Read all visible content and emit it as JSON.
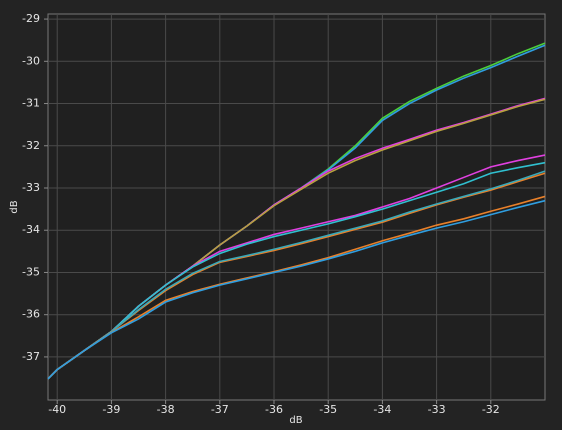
{
  "chart_data": {
    "type": "line",
    "x_label": "dB",
    "y_label": "dB",
    "x": [
      -40.17,
      -40,
      -39.5,
      -39,
      -38.5,
      -38,
      -37.5,
      -37,
      -36.5,
      -36,
      -35.5,
      -35,
      -34.5,
      -34,
      -33.5,
      -33,
      -32.5,
      -32,
      -31.5,
      -31
    ],
    "xlim": [
      -40.17,
      -31.0
    ],
    "ylim": [
      -38.02,
      -28.88
    ],
    "xticks": [
      -40,
      -39,
      -38,
      -37,
      -36,
      -35,
      -34,
      -33,
      -32
    ],
    "yticks": [
      -37,
      -36,
      -35,
      -34,
      -33,
      -32,
      -31,
      -30,
      -29
    ],
    "grid": true,
    "series": [
      {
        "color": "#4ccf3c",
        "values": [
          -37.52,
          -37.3,
          -36.85,
          -36.4,
          -35.8,
          -35.3,
          -34.85,
          -34.35,
          -33.9,
          -33.4,
          -33.0,
          -32.55,
          -32.0,
          -31.35,
          -30.95,
          -30.64,
          -30.35,
          -30.1,
          -29.82,
          -29.57
        ]
      },
      {
        "color": "#2f9ee0",
        "values": [
          -37.52,
          -37.3,
          -36.85,
          -36.4,
          -35.8,
          -35.3,
          -34.85,
          -34.35,
          -33.9,
          -33.4,
          -33.0,
          -32.57,
          -32.05,
          -31.4,
          -31.0,
          -30.68,
          -30.4,
          -30.15,
          -29.88,
          -29.62
        ]
      },
      {
        "color": "#e040e0",
        "values": [
          -37.52,
          -37.3,
          -36.85,
          -36.4,
          -35.8,
          -35.3,
          -34.85,
          -34.35,
          -33.9,
          -33.4,
          -33.0,
          -32.6,
          -32.3,
          -32.06,
          -31.85,
          -31.63,
          -31.45,
          -31.25,
          -31.05,
          -30.88
        ]
      },
      {
        "color": "#b8a040",
        "values": [
          -37.52,
          -37.3,
          -36.85,
          -36.4,
          -35.8,
          -35.3,
          -34.85,
          -34.35,
          -33.9,
          -33.42,
          -33.03,
          -32.65,
          -32.35,
          -32.1,
          -31.88,
          -31.66,
          -31.47,
          -31.27,
          -31.07,
          -30.9
        ]
      },
      {
        "color": "#e040e0",
        "values": [
          -37.52,
          -37.3,
          -36.85,
          -36.4,
          -35.8,
          -35.3,
          -34.85,
          -34.5,
          -34.3,
          -34.1,
          -33.95,
          -33.8,
          -33.65,
          -33.45,
          -33.25,
          -33.0,
          -32.75,
          -32.5,
          -32.35,
          -32.22
        ]
      },
      {
        "color": "#30c0d0",
        "values": [
          -37.52,
          -37.3,
          -36.85,
          -36.4,
          -35.8,
          -35.3,
          -34.87,
          -34.55,
          -34.33,
          -34.15,
          -34.0,
          -33.85,
          -33.68,
          -33.5,
          -33.3,
          -33.1,
          -32.9,
          -32.65,
          -32.52,
          -32.4
        ]
      },
      {
        "color": "#e8802a",
        "values": [
          -37.52,
          -37.3,
          -36.85,
          -36.4,
          -35.9,
          -35.43,
          -35.05,
          -34.76,
          -34.62,
          -34.48,
          -34.32,
          -34.15,
          -33.98,
          -33.81,
          -33.6,
          -33.4,
          -33.22,
          -33.05,
          -32.85,
          -32.65
        ]
      },
      {
        "color": "#3aa8b8",
        "values": [
          -37.52,
          -37.3,
          -36.85,
          -36.4,
          -35.88,
          -35.4,
          -35.02,
          -34.74,
          -34.6,
          -34.45,
          -34.29,
          -34.12,
          -33.95,
          -33.78,
          -33.57,
          -33.38,
          -33.2,
          -33.02,
          -32.82,
          -32.6
        ]
      },
      {
        "color": "#e8802a",
        "values": [
          -37.52,
          -37.3,
          -36.85,
          -36.42,
          -36.05,
          -35.66,
          -35.45,
          -35.28,
          -35.13,
          -34.98,
          -34.82,
          -34.65,
          -34.45,
          -34.25,
          -34.07,
          -33.88,
          -33.73,
          -33.55,
          -33.38,
          -33.2
        ]
      },
      {
        "color": "#2f9ee0",
        "values": [
          -37.52,
          -37.3,
          -36.85,
          -36.43,
          -36.1,
          -35.7,
          -35.48,
          -35.3,
          -35.15,
          -35.0,
          -34.85,
          -34.68,
          -34.5,
          -34.3,
          -34.12,
          -33.95,
          -33.8,
          -33.63,
          -33.46,
          -33.3
        ]
      }
    ]
  }
}
